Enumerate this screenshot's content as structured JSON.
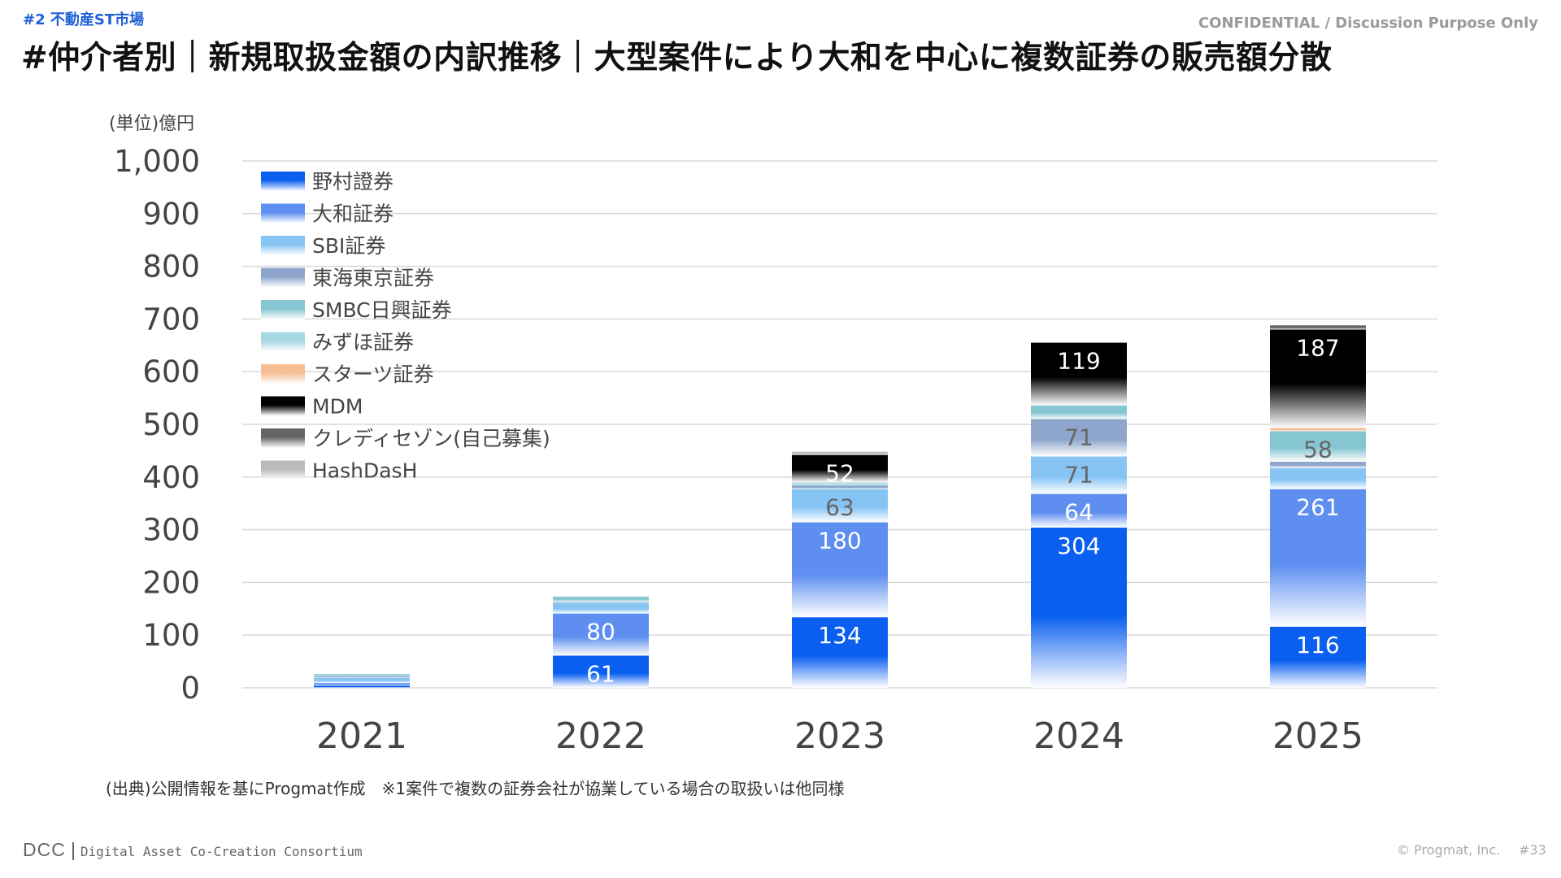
{
  "header": {
    "section_label": "#2 不動産ST市場",
    "confidential": "CONFIDENTIAL / Discussion Purpose Only",
    "title": "#仲介者別｜新規取扱金額の内訳推移｜大型案件により大和を中心に複数証券の販売額分散"
  },
  "unit_label": "(単位)億円",
  "source_note": "(出典)公開情報を基にProgmat作成　※1案件で複数の証券会社が協業している場合の取扱いは他同様",
  "footer": {
    "logo": "DCC",
    "logo_full": "Digital Asset Co-Creation Consortium",
    "copyright": "© Progmat, Inc.",
    "page": "#33"
  },
  "chart_data": {
    "type": "bar",
    "stacked": true,
    "categories": [
      "2021",
      "2022",
      "2023",
      "2024",
      "2025"
    ],
    "ylim": [
      0,
      1000
    ],
    "yticks": [
      0,
      100,
      200,
      300,
      400,
      500,
      600,
      700,
      800,
      900,
      1000
    ],
    "grid": true,
    "legend_position": "top-left",
    "series": [
      {
        "name": "野村證券",
        "color": "#0a5ff0",
        "values": [
          4,
          61,
          134,
          304,
          116
        ],
        "labels": [
          "",
          "61",
          "134",
          "304",
          "116"
        ]
      },
      {
        "name": "大和証券",
        "color": "#5d8ef0",
        "values": [
          5,
          80,
          180,
          64,
          261
        ],
        "labels": [
          "",
          "80",
          "180",
          "64",
          "261"
        ]
      },
      {
        "name": "SBI証券",
        "color": "#86c4f4",
        "values": [
          10,
          20,
          63,
          71,
          40
        ],
        "labels": [
          "",
          "",
          "63",
          "71",
          ""
        ]
      },
      {
        "name": "東海東京証券",
        "color": "#8ea6cc",
        "values": [
          3,
          2,
          7,
          71,
          12
        ],
        "labels": [
          "",
          "",
          "",
          "71",
          ""
        ]
      },
      {
        "name": "SMBC日興証券",
        "color": "#86c6d2",
        "values": [
          4,
          10,
          2,
          26,
          58
        ],
        "labels": [
          "",
          "",
          "",
          "",
          "58"
        ]
      },
      {
        "name": "みずほ証券",
        "color": "#a6d8e4",
        "values": [
          0,
          0,
          4,
          0,
          0
        ],
        "labels": [
          "",
          "",
          "",
          "",
          ""
        ]
      },
      {
        "name": "スターツ証券",
        "color": "#f6be94",
        "values": [
          0,
          0,
          0,
          0,
          6
        ],
        "labels": [
          "",
          "",
          "",
          "",
          ""
        ]
      },
      {
        "name": "MDM",
        "color": "#000000",
        "values": [
          0,
          0,
          52,
          119,
          187
        ],
        "labels": [
          "",
          "",
          "52",
          "119",
          "187"
        ]
      },
      {
        "name": "クレディセゾン(自己募集)",
        "color": "#666666",
        "values": [
          0,
          0,
          0,
          0,
          8
        ],
        "labels": [
          "",
          "",
          "",
          "",
          ""
        ]
      },
      {
        "name": "HashDasH",
        "color": "#bbbbbb",
        "values": [
          0,
          0,
          6,
          0,
          0
        ],
        "labels": [
          "",
          "",
          "",
          "",
          ""
        ]
      }
    ]
  }
}
